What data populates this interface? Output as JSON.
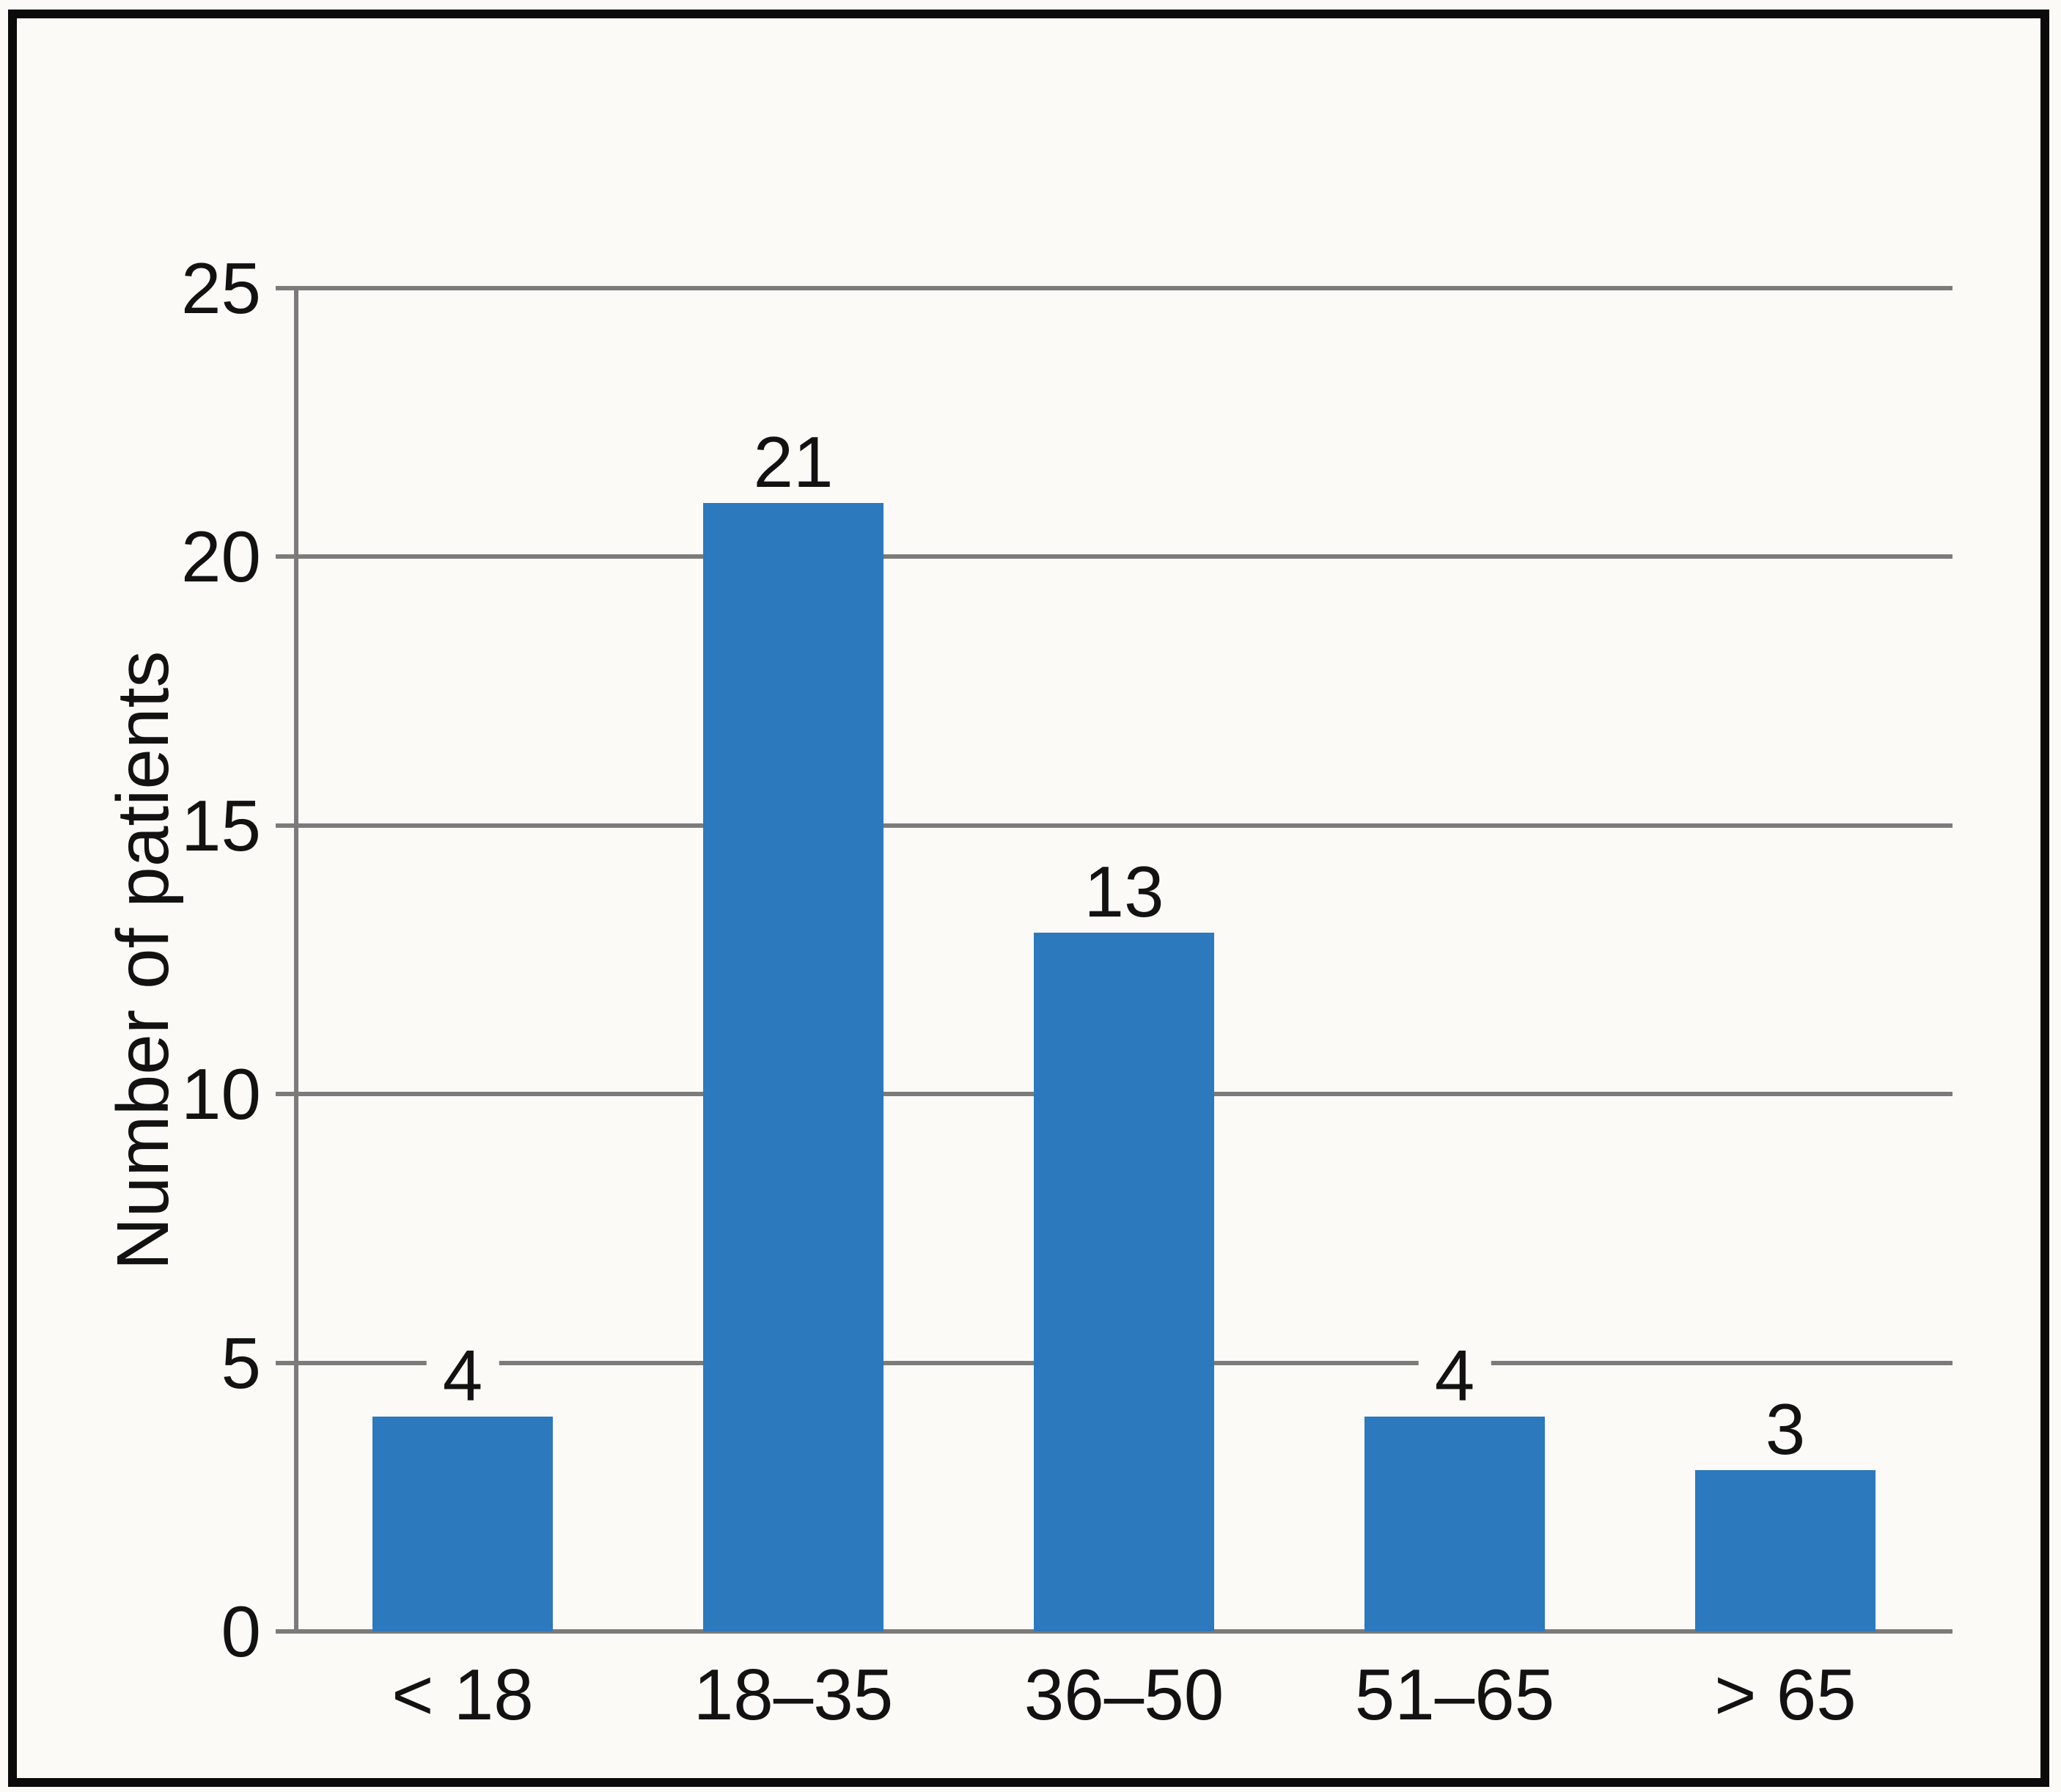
{
  "chart_data": {
    "type": "bar",
    "title": "",
    "xlabel": "",
    "ylabel": "Number of patients",
    "categories": [
      "< 18",
      "18–35",
      "36–50",
      "51–65",
      "> 65"
    ],
    "values": [
      4,
      21,
      13,
      4,
      3
    ],
    "value_labels": [
      "4",
      "21",
      "13",
      "4",
      "3"
    ],
    "ytick_labels": [
      "0",
      "5",
      "10",
      "15",
      "20",
      "25"
    ],
    "yticks": [
      0,
      5,
      10,
      15,
      20,
      25
    ],
    "ylim": [
      0,
      25
    ],
    "grid": "horizontal",
    "legend": "none",
    "colors": {
      "bar": "#2c79be",
      "gridline": "#7b7b7b",
      "axis": "#7b7b7b",
      "text": "#121212",
      "background": "#fbfaf7",
      "frame_border": "#0b0b0b"
    }
  }
}
